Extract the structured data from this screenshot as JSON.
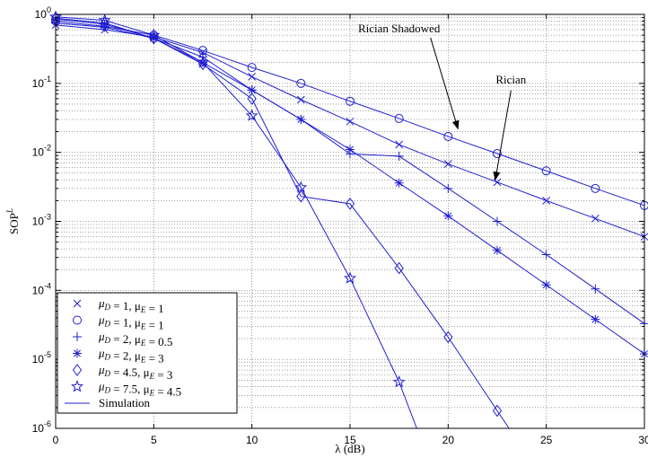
{
  "chart_data": {
    "type": "line",
    "xlabel": "λ (dB)",
    "ylabel": "SOP",
    "ylabel_sup": "L",
    "xlim": [
      0,
      30
    ],
    "ylim": [
      1e-06,
      1
    ],
    "yscale": "log",
    "grid": true,
    "legend_position": "bottom-left",
    "line_color": "#1f1fd0",
    "x_ticks": [
      0,
      5,
      10,
      15,
      20,
      25,
      30
    ],
    "y_ticks": [
      {
        "exp": 0,
        "label": "10",
        "sup": "0"
      },
      {
        "exp": -1,
        "label": "10",
        "sup": "-1"
      },
      {
        "exp": -2,
        "label": "10",
        "sup": "-2"
      },
      {
        "exp": -3,
        "label": "10",
        "sup": "-3"
      },
      {
        "exp": -4,
        "label": "10",
        "sup": "-4"
      },
      {
        "exp": -5,
        "label": "10",
        "sup": "-5"
      },
      {
        "exp": -6,
        "label": "10",
        "sup": "-6"
      }
    ],
    "series": [
      {
        "name": "μD = 1, μE = 1",
        "marker": "x",
        "x": [
          0,
          2.5,
          5,
          7.5,
          10,
          12.5,
          15,
          17.5,
          20,
          22.5,
          25,
          27.5,
          30
        ],
        "y": [
          0.7,
          0.6,
          0.47,
          0.28,
          0.125,
          0.058,
          0.028,
          0.013,
          0.0068,
          0.0037,
          0.002,
          0.0011,
          0.0006
        ]
      },
      {
        "name": "μD = 1, μE = 1",
        "marker": "circle",
        "x": [
          0,
          2.5,
          5,
          7.5,
          10,
          12.5,
          15,
          17.5,
          20,
          22.5,
          25,
          27.5,
          30
        ],
        "y": [
          0.8,
          0.67,
          0.5,
          0.3,
          0.17,
          0.1,
          0.055,
          0.031,
          0.017,
          0.0096,
          0.0054,
          0.003,
          0.0017
        ]
      },
      {
        "name": "μD = 2, μE = 0.5",
        "marker": "plus",
        "x": [
          0,
          2.5,
          5,
          7.5,
          10,
          12.5,
          15,
          17.5,
          20,
          22.5,
          25,
          27.5,
          30
        ],
        "y": [
          0.75,
          0.65,
          0.45,
          0.24,
          0.08,
          0.03,
          0.0095,
          0.0088,
          0.003,
          0.001,
          0.00033,
          0.000105,
          3.3e-05
        ]
      },
      {
        "name": "μD = 2, μE = 3",
        "marker": "star",
        "x": [
          0,
          2.5,
          5,
          7.5,
          10,
          12.5,
          15,
          17.5,
          20,
          22.5,
          25,
          27.5,
          30
        ],
        "y": [
          0.85,
          0.72,
          0.45,
          0.2,
          0.08,
          0.03,
          0.011,
          0.0036,
          0.0012,
          0.00038,
          0.00012,
          3.8e-05,
          1.2e-05
        ]
      },
      {
        "name": "μD = 4.5, μE = 3",
        "marker": "diamond",
        "x": [
          0,
          2.5,
          5,
          7.5,
          10,
          12.5,
          15,
          17.5,
          20,
          22.5
        ],
        "y": [
          0.88,
          0.75,
          0.45,
          0.19,
          0.06,
          0.0023,
          0.0018,
          0.00021,
          2.1e-05,
          1.8e-06
        ]
      },
      {
        "name": "μD = 7.5, μE = 4.5",
        "marker": "pentagram",
        "x": [
          0,
          2.5,
          5,
          7.5,
          10,
          12.5,
          15,
          17.5
        ],
        "y": [
          0.92,
          0.82,
          0.5,
          0.2,
          0.034,
          0.0031,
          0.00015,
          4.7e-06
        ]
      }
    ],
    "sim_curves": [
      {
        "x": [
          0,
          2.5,
          5,
          7.5,
          10,
          12.5,
          15,
          17.5,
          20,
          22.5,
          25,
          27.5,
          30
        ],
        "y": [
          0.7,
          0.6,
          0.47,
          0.28,
          0.125,
          0.058,
          0.028,
          0.013,
          0.0068,
          0.0037,
          0.002,
          0.0011,
          0.0006
        ]
      },
      {
        "x": [
          0,
          2.5,
          5,
          7.5,
          10,
          12.5,
          15,
          17.5,
          20,
          22.5,
          25,
          27.5,
          30
        ],
        "y": [
          0.8,
          0.67,
          0.5,
          0.3,
          0.17,
          0.1,
          0.055,
          0.031,
          0.017,
          0.0096,
          0.0054,
          0.003,
          0.0017
        ]
      },
      {
        "x": [
          0,
          2.5,
          5,
          7.5,
          10,
          12.5,
          15,
          17.5,
          20,
          22.5,
          25,
          27.5,
          30
        ],
        "y": [
          0.75,
          0.65,
          0.45,
          0.24,
          0.08,
          0.03,
          0.0095,
          0.0088,
          0.003,
          0.001,
          0.00033,
          0.000105,
          3.3e-05
        ]
      },
      {
        "x": [
          0,
          2.5,
          5,
          7.5,
          10,
          12.5,
          15,
          17.5,
          20,
          22.5,
          25,
          27.5,
          30
        ],
        "y": [
          0.85,
          0.72,
          0.45,
          0.2,
          0.08,
          0.03,
          0.011,
          0.0036,
          0.0012,
          0.00038,
          0.00012,
          3.8e-05,
          1.2e-05
        ]
      },
      {
        "x": [
          0,
          2.5,
          5,
          7.5,
          10,
          12.5,
          15,
          17.5,
          20,
          22.5,
          23.1
        ],
        "y": [
          0.88,
          0.75,
          0.45,
          0.19,
          0.06,
          0.0023,
          0.0018,
          0.00021,
          2.1e-05,
          1.8e-06,
          1e-06
        ]
      },
      {
        "x": [
          0,
          2.5,
          5,
          7.5,
          10,
          12.5,
          15,
          17.5,
          18.4
        ],
        "y": [
          0.92,
          0.82,
          0.5,
          0.2,
          0.034,
          0.0031,
          0.00015,
          4.7e-06,
          1e-06
        ]
      }
    ],
    "legend": [
      {
        "marker": "x",
        "pre": "μ",
        "s1": "D",
        "mid": " = 1, μ",
        "s2": "E",
        "post": " = 1"
      },
      {
        "marker": "circle",
        "pre": "μ",
        "s1": "D",
        "mid": " = 1, μ",
        "s2": "E",
        "post": " = 1"
      },
      {
        "marker": "plus",
        "pre": "μ",
        "s1": "D",
        "mid": " = 2, μ",
        "s2": "E",
        "post": " = 0.5"
      },
      {
        "marker": "star",
        "pre": "μ",
        "s1": "D",
        "mid": " = 2, μ",
        "s2": "E",
        "post": " = 3"
      },
      {
        "marker": "diamond",
        "pre": "μ",
        "s1": "D",
        "mid": " = 4.5, μ",
        "s2": "E",
        "post": " = 3"
      },
      {
        "marker": "pentagram",
        "pre": "μ",
        "s1": "D",
        "mid": " = 7.5, μ",
        "s2": "E",
        "post": " = 4.5"
      },
      {
        "marker": "line",
        "pre": "Simulation",
        "s1": "",
        "mid": "",
        "s2": "",
        "post": ""
      }
    ],
    "annotations": [
      {
        "text": "Rician Shadowed",
        "x": 17.5,
        "y": 0.55,
        "arrow_to_x": 20.5,
        "arrow_to_y": 0.022
      },
      {
        "text": "Rician",
        "x": 23.2,
        "y": 0.1,
        "arrow_to_x": 22.4,
        "arrow_to_y": 0.004
      }
    ]
  }
}
